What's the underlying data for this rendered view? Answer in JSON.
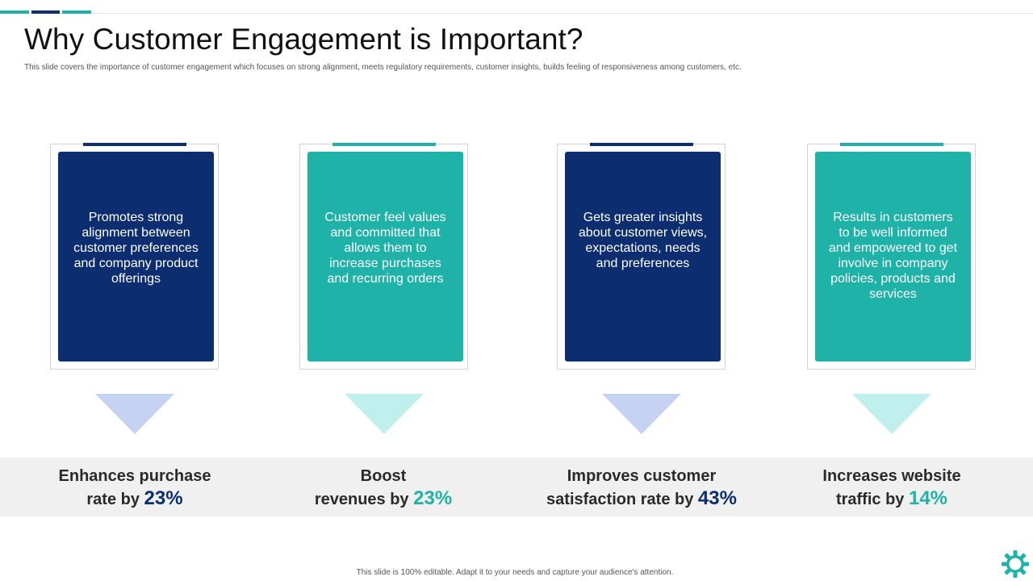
{
  "slide": {
    "title": "Why Customer Engagement is Important?",
    "subtitle": "This slide covers the importance of customer engagement which focuses on strong alignment, meets regulatory requirements, customer insights, builds feeling of responsiveness among customers, etc.",
    "footer": "This slide is 100% editable. Adapt it to your needs and capture your audience's attention."
  },
  "colors": {
    "navy": "#0c2d6f",
    "teal": "#1eb2a9",
    "band": "#f0f0f0"
  },
  "cards": [
    {
      "text": "Promotes strong alignment between customer preferences and company product offerings",
      "color": "navy"
    },
    {
      "text": "Customer feel values and committed that allows them to increase purchases and recurring orders",
      "color": "teal"
    },
    {
      "text": "Gets greater insights about customer views, expectations, needs and preferences",
      "color": "navy"
    },
    {
      "text": "Results in customers to be well informed and empowered to get involve in company policies, products and services",
      "color": "teal"
    }
  ],
  "stats": [
    {
      "line1": "Enhances purchase",
      "line2": "rate by",
      "value": "23%"
    },
    {
      "line1": "Boost",
      "line2": "revenues by",
      "value": "23%"
    },
    {
      "line1": "Improves customer",
      "line2": "satisfaction rate by",
      "value": "43%"
    },
    {
      "line1": "Increases website",
      "line2": "traffic by",
      "value": "14%"
    }
  ],
  "icons": {
    "corner": "gear-icon"
  }
}
